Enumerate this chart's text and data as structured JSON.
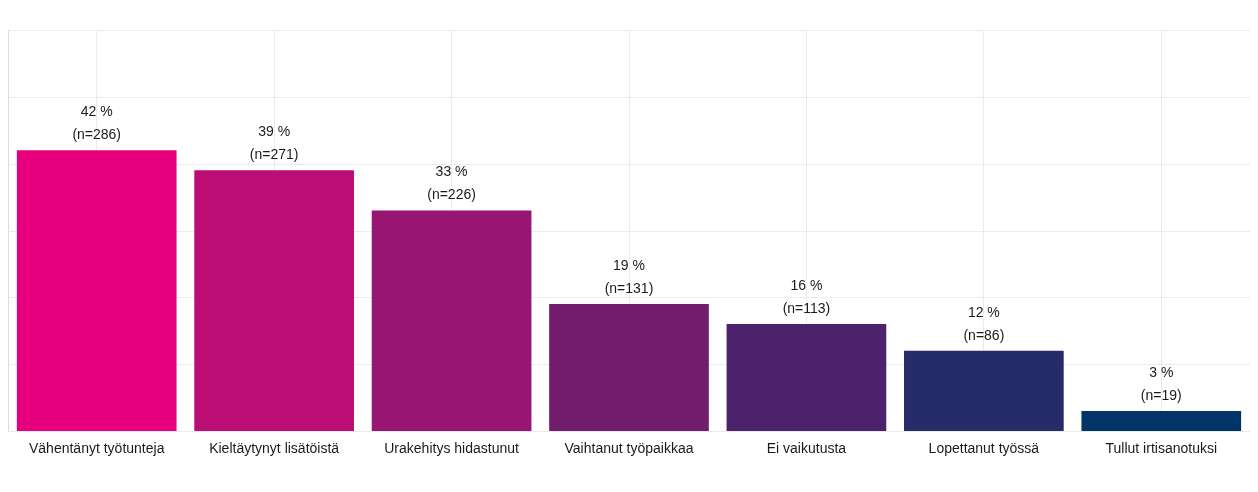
{
  "chart_data": {
    "type": "bar",
    "categories": [
      "Vähentänyt työtunteja",
      "Kieltäytynyt lisätöistä",
      "Urakehitys hidastunut",
      "Vaihtanut työpaikkaa",
      "Ei vaikutusta",
      "Lopettanut työssä",
      "Tullut irtisanotuksi"
    ],
    "values": [
      42,
      39,
      33,
      19,
      16,
      12,
      3
    ],
    "colors": [
      "#e6007e",
      "#bc0d74",
      "#991572",
      "#721c6e",
      "#4d226c",
      "#262c69",
      "#003566"
    ],
    "value_labels": [
      "42 %\n(n=286)",
      "39 %\n(n=271)",
      "33 %\n(n=226)",
      "19 %\n(n=131)",
      "16 %\n(n=113)",
      "12 %\n(n=86)",
      "3 %\n(n=19)"
    ],
    "ylim": [
      0,
      60
    ],
    "yticks": [
      {
        "value": 0,
        "label": null
      },
      {
        "value": 10,
        "label": null
      },
      {
        "value": 20,
        "label": null
      },
      {
        "value": 30,
        "label": null
      },
      {
        "value": 40,
        "label": null
      },
      {
        "value": 50,
        "label": null
      },
      {
        "value": 60,
        "label": null
      }
    ],
    "grid": true,
    "tick_labels": "x"
  }
}
